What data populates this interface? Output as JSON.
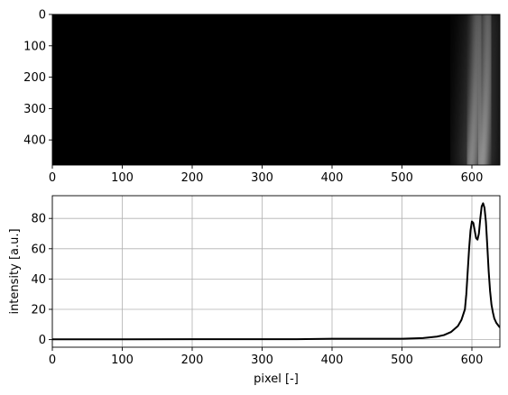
{
  "chart_data": [
    {
      "type": "heatmap",
      "title": "",
      "xlabel": "",
      "ylabel": "",
      "xlim": [
        0,
        640
      ],
      "ylim": [
        480,
        0
      ],
      "colormap": "gray",
      "x_ticks": [
        "0",
        "100",
        "200",
        "300",
        "400",
        "500",
        "600"
      ],
      "y_ticks": [
        "0",
        "100",
        "200",
        "300",
        "400"
      ],
      "bright_bands": [
        {
          "x_top": 608,
          "x_bottom": 598,
          "width": 10,
          "intensity": 0.78
        },
        {
          "x_top": 623,
          "x_bottom": 614,
          "width": 10,
          "intensity": 0.9
        }
      ]
    },
    {
      "type": "line",
      "title": "",
      "xlabel": "pixel [-]",
      "ylabel": "intensity [a.u.]",
      "xlim": [
        0,
        640
      ],
      "ylim": [
        -5,
        95
      ],
      "grid": true,
      "x_ticks": [
        "0",
        "100",
        "200",
        "300",
        "400",
        "500",
        "600"
      ],
      "y_ticks": [
        "0",
        "20",
        "40",
        "60",
        "80"
      ],
      "series": [
        {
          "color": "#000000",
          "x": [
            0,
            100,
            200,
            300,
            350,
            400,
            450,
            500,
            530,
            550,
            560,
            570,
            575,
            580,
            585,
            590,
            592,
            594,
            596,
            598,
            600,
            602,
            604,
            606,
            608,
            610,
            612,
            614,
            616,
            618,
            620,
            622,
            624,
            626,
            628,
            630,
            632,
            635,
            640
          ],
          "y": [
            0.2,
            0.2,
            0.3,
            0.3,
            0.3,
            0.6,
            0.6,
            0.6,
            1.0,
            2.0,
            3.0,
            5.0,
            7.0,
            9.0,
            13.0,
            20.0,
            30.0,
            45.0,
            60.0,
            72.0,
            78.0,
            77.0,
            72.0,
            67.0,
            66.0,
            70.0,
            80.0,
            88.0,
            90.0,
            87.0,
            78.0,
            62.0,
            45.0,
            32.0,
            23.0,
            18.0,
            14.0,
            11.0,
            8.0
          ]
        }
      ]
    }
  ]
}
